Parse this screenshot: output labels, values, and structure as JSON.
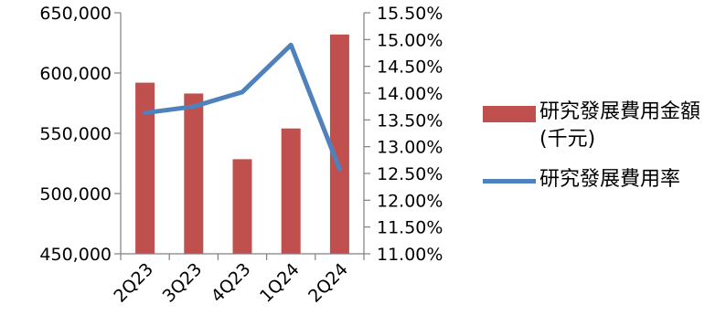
{
  "chart_data": {
    "type": "bar",
    "categories": [
      "2Q23",
      "3Q23",
      "4Q23",
      "1Q24",
      "2Q24"
    ],
    "series": [
      {
        "name": "研究發展費用金額(千元)",
        "type": "bar",
        "axis": "left",
        "color": "#C0504D",
        "values": [
          592000,
          583000,
          528500,
          554000,
          632000
        ]
      },
      {
        "name": "研究發展費用率",
        "type": "line",
        "axis": "right",
        "color": "#4F81BD",
        "values": [
          13.63,
          13.75,
          14.02,
          14.9,
          12.58
        ]
      }
    ],
    "y_left": {
      "min": 450000,
      "max": 650000,
      "ticks": [
        "450,000",
        "500,000",
        "550,000",
        "600,000",
        "650,000"
      ],
      "tick_values": [
        450000,
        500000,
        550000,
        600000,
        650000
      ]
    },
    "y_right": {
      "min": 11.0,
      "max": 15.5,
      "ticks": [
        "11.00%",
        "11.50%",
        "12.00%",
        "12.50%",
        "13.00%",
        "13.50%",
        "14.00%",
        "14.50%",
        "15.00%",
        "15.50%"
      ],
      "tick_values": [
        11.0,
        11.5,
        12.0,
        12.5,
        13.0,
        13.5,
        14.0,
        14.5,
        15.0,
        15.5
      ]
    },
    "legend_position": "right",
    "grid": false
  },
  "legend": {
    "items": [
      {
        "label": "研究發展費用金額(千元)",
        "color": "#C0504D",
        "kind": "bar"
      },
      {
        "label": "研究發展費用率",
        "color": "#4F81BD",
        "kind": "line"
      }
    ]
  }
}
